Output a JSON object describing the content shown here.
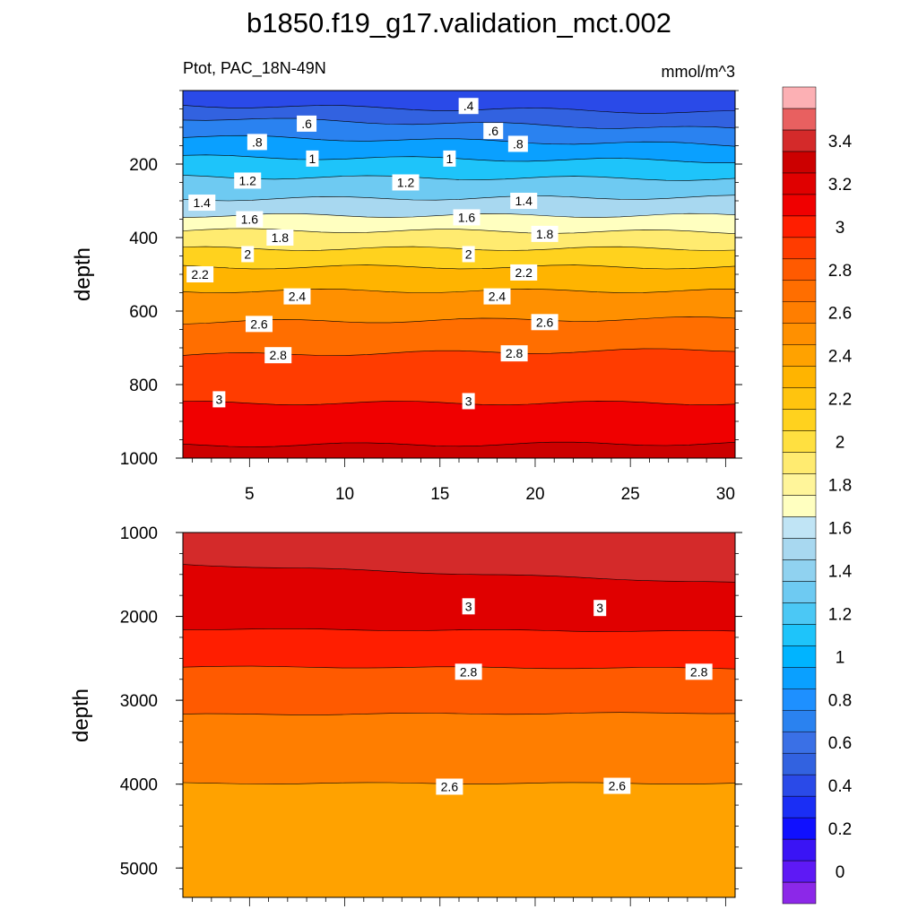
{
  "figure": {
    "title": "b1850.f19_g17.validation_mct.002",
    "left_string": "Ptot, PAC_18N-49N",
    "right_string": "mmol/m^3"
  },
  "chart_data": [
    {
      "type": "contour",
      "panel": "upper",
      "ylabel": "depth",
      "xlabel": "",
      "xlim": [
        1.5,
        30.5
      ],
      "ylim": [
        1000,
        0
      ],
      "x_ticks": [
        "5",
        "10",
        "15",
        "20",
        "25",
        "30"
      ],
      "x_tick_values": [
        5,
        10,
        15,
        20,
        25,
        30
      ],
      "y_ticks": [
        "200",
        "400",
        "600",
        "800",
        "1000"
      ],
      "y_tick_values": [
        200,
        400,
        600,
        800,
        1000
      ],
      "contours": [
        {
          "level": 0.4,
          "depth_left": 40,
          "depth_right": 60
        },
        {
          "level": 0.6,
          "depth_left": 75,
          "depth_right": 105
        },
        {
          "level": 0.8,
          "depth_left": 125,
          "depth_right": 148
        },
        {
          "level": 1.0,
          "depth_left": 180,
          "depth_right": 192
        },
        {
          "level": 1.2,
          "depth_left": 235,
          "depth_right": 240
        },
        {
          "level": 1.4,
          "depth_left": 295,
          "depth_right": 290
        },
        {
          "level": 1.6,
          "depth_left": 340,
          "depth_right": 340
        },
        {
          "level": 1.8,
          "depth_left": 380,
          "depth_right": 385
        },
        {
          "level": 2.0,
          "depth_left": 430,
          "depth_right": 430
        },
        {
          "level": 2.2,
          "depth_left": 480,
          "depth_right": 480
        },
        {
          "level": 2.4,
          "depth_left": 545,
          "depth_right": 545
        },
        {
          "level": 2.6,
          "depth_left": 630,
          "depth_right": 620
        },
        {
          "level": 2.8,
          "depth_left": 720,
          "depth_right": 705
        },
        {
          "level": 3.0,
          "depth_left": 850,
          "depth_right": 850
        },
        {
          "level": 3.2,
          "depth_left": 965,
          "depth_right": 960
        }
      ],
      "labels": [
        {
          "text": ".4",
          "x": 16.5,
          "y": 42
        },
        {
          "text": ".6",
          "x": 8.0,
          "y": 90
        },
        {
          "text": ".6",
          "x": 17.8,
          "y": 110
        },
        {
          "text": ".8",
          "x": 5.4,
          "y": 140
        },
        {
          "text": ".8",
          "x": 19.1,
          "y": 145
        },
        {
          "text": "1",
          "x": 8.3,
          "y": 185
        },
        {
          "text": "1",
          "x": 15.5,
          "y": 185
        },
        {
          "text": "1.2",
          "x": 4.9,
          "y": 245
        },
        {
          "text": "1.2",
          "x": 13.2,
          "y": 250
        },
        {
          "text": "1.4",
          "x": 2.5,
          "y": 305
        },
        {
          "text": "1.4",
          "x": 19.4,
          "y": 300
        },
        {
          "text": "1.6",
          "x": 5.0,
          "y": 350
        },
        {
          "text": "1.6",
          "x": 16.4,
          "y": 345
        },
        {
          "text": "1.8",
          "x": 6.6,
          "y": 400
        },
        {
          "text": "1.8",
          "x": 20.5,
          "y": 390
        },
        {
          "text": "2",
          "x": 4.9,
          "y": 445
        },
        {
          "text": "2",
          "x": 16.5,
          "y": 445
        },
        {
          "text": "2.2",
          "x": 2.4,
          "y": 500
        },
        {
          "text": "2.2",
          "x": 19.4,
          "y": 495
        },
        {
          "text": "2.4",
          "x": 7.5,
          "y": 560
        },
        {
          "text": "2.4",
          "x": 18.0,
          "y": 560
        },
        {
          "text": "2.6",
          "x": 5.5,
          "y": 635
        },
        {
          "text": "2.6",
          "x": 20.5,
          "y": 630
        },
        {
          "text": "2.8",
          "x": 6.5,
          "y": 720
        },
        {
          "text": "2.8",
          "x": 18.9,
          "y": 715
        },
        {
          "text": "3",
          "x": 3.4,
          "y": 840
        },
        {
          "text": "3",
          "x": 16.5,
          "y": 845
        }
      ]
    },
    {
      "type": "contour",
      "panel": "lower",
      "ylabel": "depth",
      "xlabel": "",
      "xlim": [
        1.5,
        30.5
      ],
      "ylim": [
        5350,
        1000
      ],
      "x_ticks": [],
      "y_ticks": [
        "1000",
        "2000",
        "3000",
        "4000",
        "5000"
      ],
      "y_tick_values": [
        1000,
        2000,
        3000,
        4000,
        5000
      ],
      "contours": [
        {
          "level": 3.2,
          "depth_left": 1380,
          "depth_right": 1600
        },
        {
          "level": 3.0,
          "depth_left": 2150,
          "depth_right": 2180
        },
        {
          "level": 2.8,
          "depth_left": 2600,
          "depth_right": 2620
        },
        {
          "level": 2.6,
          "depth_left": 3170,
          "depth_right": 3150
        },
        {
          "level": 2.4,
          "depth_left": 3990,
          "depth_right": 3990
        }
      ],
      "labels": [
        {
          "text": "3",
          "x": 16.5,
          "y": 1880
        },
        {
          "text": "3",
          "x": 23.4,
          "y": 1900
        },
        {
          "text": "2.8",
          "x": 16.5,
          "y": 2660
        },
        {
          "text": "2.8",
          "x": 28.6,
          "y": 2660
        },
        {
          "text": "2.6",
          "x": 15.5,
          "y": 4030
        },
        {
          "text": "2.6",
          "x": 24.3,
          "y": 4020
        }
      ]
    }
  ],
  "colorbar": {
    "tick_labels": [
      "0",
      "0.2",
      "0.4",
      "0.6",
      "0.8",
      "1",
      "1.2",
      "1.4",
      "1.6",
      "1.8",
      "2",
      "2.2",
      "2.4",
      "2.6",
      "2.8",
      "3",
      "3.2",
      "3.4"
    ],
    "levels": [
      -0.2,
      0,
      0.1,
      0.2,
      0.3,
      0.4,
      0.5,
      0.6,
      0.7,
      0.8,
      0.9,
      1.0,
      1.1,
      1.2,
      1.3,
      1.4,
      1.5,
      1.6,
      1.7,
      1.8,
      1.9,
      2.0,
      2.1,
      2.2,
      2.3,
      2.4,
      2.5,
      2.6,
      2.7,
      2.8,
      2.9,
      3.0,
      3.1,
      3.2,
      3.3,
      3.4,
      3.5
    ],
    "colors": [
      "#8c28e8",
      "#5e19f5",
      "#3a14f5",
      "#1010ff",
      "#1a2ef5",
      "#2a4ae8",
      "#3262e0",
      "#3a70e6",
      "#2a82f0",
      "#1e90ff",
      "#0aa0ff",
      "#00b4ff",
      "#1ec4fa",
      "#4bc8f5",
      "#6ecaf2",
      "#90d2f0",
      "#a8d8f0",
      "#c0e4f5",
      "#ffffc0",
      "#fff59a",
      "#ffeb70",
      "#ffe040",
      "#ffd21e",
      "#ffc40e",
      "#ffb400",
      "#ffa200",
      "#ff9000",
      "#ff7e00",
      "#ff6e00",
      "#ff5a00",
      "#ff3c00",
      "#ff1e00",
      "#f00000",
      "#e00000",
      "#cc0000",
      "#d42a2a",
      "#e86060",
      "#fcb0b4"
    ]
  }
}
